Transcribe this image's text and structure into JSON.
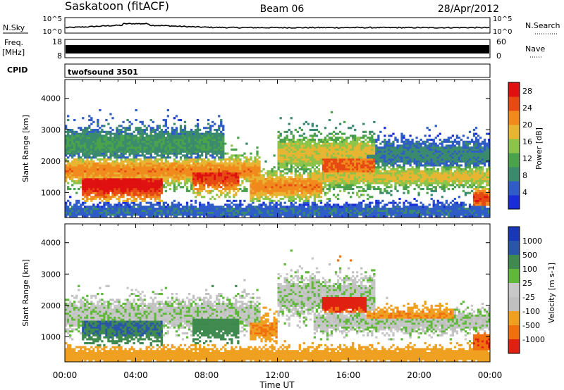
{
  "header": {
    "station": "Saskatoon (fitACF)",
    "beam": "Beam 06",
    "date": "28/Apr/2012"
  },
  "strips": {
    "nsky_label": "N.Sky",
    "nsky_ticks": [
      "10^5",
      "10^0"
    ],
    "nsearch_label": "N.Search",
    "nsearch_ticks": [
      "10^5",
      "10^0"
    ],
    "freq_label": "Freq.",
    "freq_unit": "[MHz]",
    "freq_ticks": [
      "18",
      "8"
    ],
    "nave_label": "Nave",
    "nave_ticks": [
      "60",
      "0"
    ],
    "cpid_label": "CPID",
    "cpid_value": "twofsound 3501"
  },
  "colors": {
    "power": [
      "#1a2bd8",
      "#2f5cc6",
      "#3a8a6e",
      "#4aa24a",
      "#8cc44a",
      "#e7b531",
      "#f08a1c",
      "#e64a12",
      "#e01010"
    ],
    "velocity": [
      "#1838b8",
      "#2a56a8",
      "#3f8a4e",
      "#5fb83a",
      "#c8c8c8",
      "#c0c0c0",
      "#f0a020",
      "#f07010",
      "#e02010"
    ]
  },
  "chart_data": [
    {
      "type": "heatmap",
      "quantity": "Power",
      "xlabel": "",
      "ylabel": "Slant Range [km]",
      "x_ticks": [
        "00:00",
        "04:00",
        "08:00",
        "12:00",
        "16:00",
        "20:00",
        "00:00"
      ],
      "x_range_hours": [
        0,
        24
      ],
      "y_ticks": [
        1000,
        2000,
        3000,
        4000
      ],
      "ylim": [
        200,
        4600
      ],
      "colorbar_label": "Power [dB]",
      "colorbar_ticks": [
        4,
        8,
        12,
        16,
        20,
        24,
        28
      ],
      "colorbar_range": [
        0,
        30
      ],
      "bands": [
        {
          "start": 0.0,
          "end": 11.0,
          "center": 1700,
          "width": 450,
          "peak": 22
        },
        {
          "start": 1.0,
          "end": 5.5,
          "center": 1250,
          "width": 500,
          "peak": 29
        },
        {
          "start": 7.2,
          "end": 9.8,
          "center": 1550,
          "width": 550,
          "peak": 27
        },
        {
          "start": 0.0,
          "end": 9.0,
          "center": 2550,
          "width": 500,
          "peak": 10
        },
        {
          "start": 10.5,
          "end": 14.5,
          "center": 1200,
          "width": 450,
          "peak": 22
        },
        {
          "start": 12.0,
          "end": 17.5,
          "center": 2250,
          "width": 550,
          "peak": 18
        },
        {
          "start": 14.5,
          "end": 17.5,
          "center": 1900,
          "width": 700,
          "peak": 24
        },
        {
          "start": 14.0,
          "end": 24.0,
          "center": 1500,
          "width": 350,
          "peak": 18
        },
        {
          "start": 17.0,
          "end": 24.0,
          "center": 2200,
          "width": 450,
          "peak": 8
        },
        {
          "start": 0.0,
          "end": 24.0,
          "center": 400,
          "width": 250,
          "peak": 6
        },
        {
          "start": 23.0,
          "end": 24.0,
          "center": 800,
          "width": 350,
          "peak": 26
        }
      ]
    },
    {
      "type": "heatmap",
      "quantity": "Velocity",
      "xlabel": "Time UT",
      "ylabel": "Slant Range [km]",
      "x_ticks": [
        "00:00",
        "04:00",
        "08:00",
        "12:00",
        "16:00",
        "20:00",
        "00:00"
      ],
      "x_range_hours": [
        0,
        24
      ],
      "y_ticks": [
        1000,
        2000,
        3000,
        4000
      ],
      "ylim": [
        200,
        4600
      ],
      "colorbar_label": "Velocity [m s-1]",
      "colorbar_ticks": [
        1000,
        500,
        100,
        25,
        -25,
        -100,
        -500,
        -1000
      ],
      "bands": [
        {
          "start": 0.0,
          "end": 11.0,
          "center": 1700,
          "width": 450,
          "peak": 0
        },
        {
          "start": 1.0,
          "end": 5.5,
          "center": 1300,
          "width": 450,
          "peak": 300
        },
        {
          "start": 7.2,
          "end": 9.8,
          "center": 1500,
          "width": 550,
          "peak": 200
        },
        {
          "start": 10.5,
          "end": 12.0,
          "center": 1250,
          "width": 350,
          "peak": -300
        },
        {
          "start": 12.0,
          "end": 17.5,
          "center": 2300,
          "width": 550,
          "peak": 0
        },
        {
          "start": 14.5,
          "end": 17.0,
          "center": 2200,
          "width": 600,
          "peak": -800
        },
        {
          "start": 14.0,
          "end": 24.0,
          "center": 1500,
          "width": 350,
          "peak": 0
        },
        {
          "start": 17.0,
          "end": 22.0,
          "center": 1600,
          "width": 300,
          "peak": -300
        },
        {
          "start": 0.0,
          "end": 24.0,
          "center": 400,
          "width": 250,
          "peak": -200
        },
        {
          "start": 23.0,
          "end": 24.0,
          "center": 800,
          "width": 350,
          "peak": -700
        }
      ]
    }
  ]
}
